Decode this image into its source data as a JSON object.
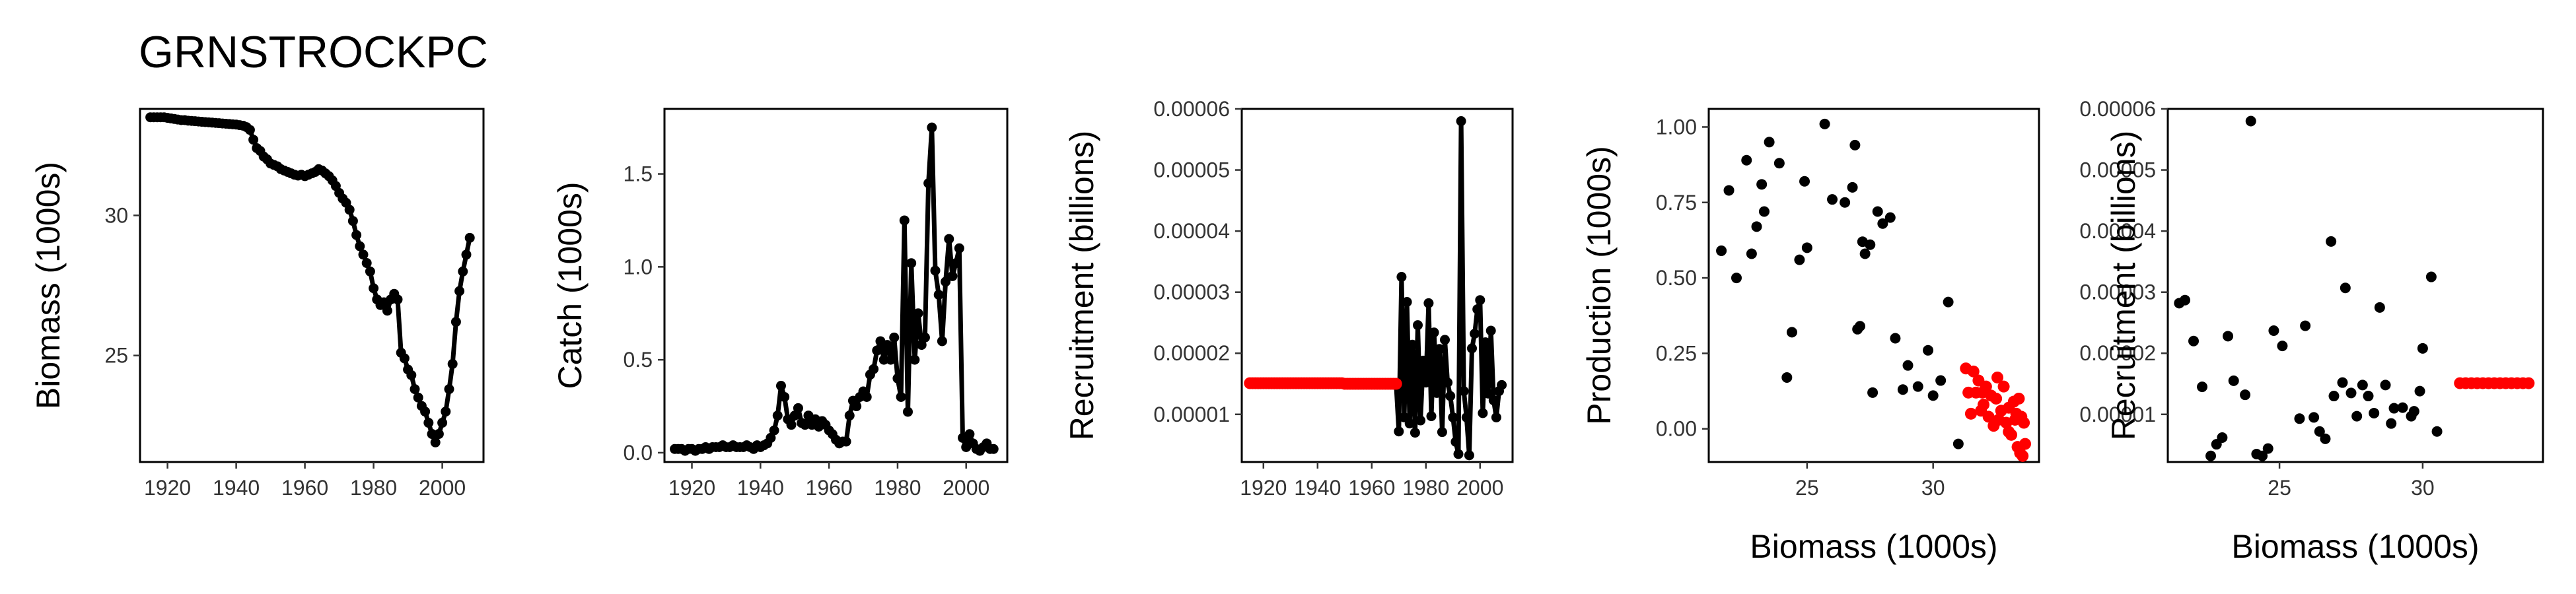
{
  "title": "GRNSTROCKPC",
  "colors": {
    "points": "#000000",
    "highlight": "#ff0000",
    "line": "#000000"
  },
  "chart_data": [
    {
      "id": "biomass",
      "type": "line",
      "xlabel": "",
      "ylabel": "Biomass (1000s)",
      "xlim": [
        1912,
        2012
      ],
      "ylim": [
        21.2,
        33.8
      ],
      "xticks": [
        1920,
        1940,
        1960,
        1980,
        2000
      ],
      "yticks": [
        25,
        30
      ],
      "x": [
        1915,
        1916,
        1917,
        1918,
        1919,
        1920,
        1921,
        1922,
        1923,
        1924,
        1925,
        1926,
        1927,
        1928,
        1929,
        1930,
        1931,
        1932,
        1933,
        1934,
        1935,
        1936,
        1937,
        1938,
        1939,
        1940,
        1941,
        1942,
        1943,
        1944,
        1945,
        1946,
        1947,
        1948,
        1949,
        1950,
        1951,
        1952,
        1953,
        1954,
        1955,
        1956,
        1957,
        1958,
        1959,
        1960,
        1961,
        1962,
        1963,
        1964,
        1965,
        1966,
        1967,
        1968,
        1969,
        1970,
        1971,
        1972,
        1973,
        1974,
        1975,
        1976,
        1977,
        1978,
        1979,
        1980,
        1981,
        1982,
        1983,
        1984,
        1985,
        1986,
        1987,
        1988,
        1989,
        1990,
        1991,
        1992,
        1993,
        1994,
        1995,
        1996,
        1997,
        1998,
        1999,
        2000,
        2001,
        2002,
        2003,
        2004,
        2005,
        2006,
        2007,
        2008
      ],
      "values": [
        33.5,
        33.5,
        33.5,
        33.5,
        33.5,
        33.48,
        33.46,
        33.44,
        33.42,
        33.4,
        33.4,
        33.38,
        33.37,
        33.36,
        33.35,
        33.34,
        33.33,
        33.32,
        33.31,
        33.3,
        33.29,
        33.28,
        33.27,
        33.26,
        33.25,
        33.24,
        33.22,
        33.2,
        33.15,
        33.05,
        32.7,
        32.4,
        32.3,
        32.1,
        32.0,
        31.85,
        31.8,
        31.75,
        31.65,
        31.6,
        31.55,
        31.5,
        31.45,
        31.42,
        31.45,
        31.4,
        31.45,
        31.5,
        31.55,
        31.65,
        31.6,
        31.5,
        31.4,
        31.25,
        31.05,
        30.8,
        30.6,
        30.45,
        30.2,
        29.8,
        29.3,
        28.9,
        28.6,
        28.3,
        28.0,
        27.4,
        27.0,
        26.8,
        26.9,
        26.6,
        27.0,
        27.2,
        27.0,
        25.1,
        24.9,
        24.5,
        24.3,
        23.8,
        23.5,
        23.2,
        23.0,
        22.6,
        22.2,
        21.9,
        22.2,
        22.6,
        23.0,
        23.8,
        24.7,
        26.2,
        27.3,
        28.0,
        28.6,
        29.2
      ]
    },
    {
      "id": "catch",
      "type": "line",
      "xlabel": "",
      "ylabel": "Catch (1000s)",
      "xlim": [
        1912,
        2012
      ],
      "ylim": [
        -0.05,
        1.85
      ],
      "xticks": [
        1920,
        1940,
        1960,
        1980,
        2000
      ],
      "yticks": [
        0.0,
        0.5,
        1.0,
        1.5
      ],
      "ytick_labels": [
        "0.0",
        "0.5",
        "1.0",
        "1.5"
      ],
      "x": [
        1915,
        1916,
        1917,
        1918,
        1919,
        1920,
        1921,
        1922,
        1923,
        1924,
        1925,
        1926,
        1927,
        1928,
        1929,
        1930,
        1931,
        1932,
        1933,
        1934,
        1935,
        1936,
        1937,
        1938,
        1939,
        1940,
        1941,
        1942,
        1943,
        1944,
        1945,
        1946,
        1947,
        1948,
        1949,
        1950,
        1951,
        1952,
        1953,
        1954,
        1955,
        1956,
        1957,
        1958,
        1959,
        1960,
        1961,
        1962,
        1963,
        1964,
        1965,
        1966,
        1967,
        1968,
        1969,
        1970,
        1971,
        1972,
        1973,
        1974,
        1975,
        1976,
        1977,
        1978,
        1979,
        1980,
        1981,
        1982,
        1983,
        1984,
        1985,
        1986,
        1987,
        1988,
        1989,
        1990,
        1991,
        1992,
        1993,
        1994,
        1995,
        1996,
        1997,
        1998,
        1999,
        2000,
        2001,
        2002,
        2003,
        2004,
        2005,
        2006,
        2007,
        2008
      ],
      "values": [
        0.02,
        0.02,
        0.02,
        0.01,
        0.02,
        0.02,
        0.01,
        0.02,
        0.02,
        0.03,
        0.02,
        0.03,
        0.03,
        0.03,
        0.04,
        0.03,
        0.03,
        0.04,
        0.03,
        0.03,
        0.03,
        0.04,
        0.03,
        0.02,
        0.04,
        0.03,
        0.04,
        0.05,
        0.08,
        0.12,
        0.2,
        0.36,
        0.3,
        0.18,
        0.15,
        0.2,
        0.24,
        0.16,
        0.15,
        0.2,
        0.15,
        0.18,
        0.14,
        0.17,
        0.15,
        0.12,
        0.1,
        0.07,
        0.05,
        0.06,
        0.06,
        0.2,
        0.28,
        0.25,
        0.3,
        0.33,
        0.3,
        0.42,
        0.45,
        0.55,
        0.6,
        0.5,
        0.58,
        0.5,
        0.62,
        0.4,
        0.3,
        1.25,
        0.22,
        1.02,
        0.5,
        0.75,
        0.58,
        0.62,
        1.45,
        1.75,
        0.98,
        0.85,
        0.6,
        0.92,
        1.15,
        0.95,
        1.02,
        1.1,
        0.08,
        0.03,
        0.1,
        0.05,
        0.02,
        0.01,
        0.03,
        0.05,
        0.02,
        0.02
      ]
    },
    {
      "id": "recruitment",
      "type": "line",
      "xlabel": "",
      "ylabel": "Recruitment (billions)",
      "xlim": [
        1912,
        2012
      ],
      "ylim": [
        2.2e-06,
        6e-05
      ],
      "xticks": [
        1920,
        1940,
        1960,
        1980,
        2000
      ],
      "xtick_labels": [
        "1920",
        "1940",
        "1960",
        "1980",
        "2000"
      ],
      "yticks": [
        1e-05,
        2e-05,
        3e-05,
        4e-05,
        5e-05,
        6e-05
      ],
      "ytick_labels": [
        "0.00001",
        "0.00002",
        "0.00003",
        "0.00004",
        "0.00005",
        "0.00006"
      ],
      "x": [
        1915,
        1916,
        1917,
        1918,
        1919,
        1920,
        1921,
        1922,
        1923,
        1924,
        1925,
        1926,
        1927,
        1928,
        1929,
        1930,
        1931,
        1932,
        1933,
        1934,
        1935,
        1936,
        1937,
        1938,
        1939,
        1940,
        1941,
        1942,
        1943,
        1944,
        1945,
        1946,
        1947,
        1948,
        1949,
        1950,
        1951,
        1952,
        1953,
        1954,
        1955,
        1956,
        1957,
        1958,
        1959,
        1960,
        1961,
        1962,
        1963,
        1964,
        1965,
        1966,
        1967,
        1968,
        1969,
        1970,
        1971,
        1972,
        1973,
        1974,
        1975,
        1976,
        1977,
        1978,
        1979,
        1980,
        1981,
        1982,
        1983,
        1984,
        1985,
        1986,
        1987,
        1988,
        1989,
        1990,
        1991,
        1992,
        1993,
        1994,
        1995,
        1996,
        1997,
        1998,
        1999,
        2000,
        2001,
        2002,
        2003,
        2004,
        2005,
        2006,
        2007,
        2008
      ],
      "values": [
        1.51e-05,
        1.51e-05,
        1.51e-05,
        1.51e-05,
        1.51e-05,
        1.51e-05,
        1.51e-05,
        1.51e-05,
        1.51e-05,
        1.51e-05,
        1.51e-05,
        1.51e-05,
        1.51e-05,
        1.51e-05,
        1.51e-05,
        1.51e-05,
        1.51e-05,
        1.51e-05,
        1.51e-05,
        1.51e-05,
        1.51e-05,
        1.51e-05,
        1.51e-05,
        1.51e-05,
        1.51e-05,
        1.51e-05,
        1.51e-05,
        1.51e-05,
        1.51e-05,
        1.51e-05,
        1.51e-05,
        1.51e-05,
        1.51e-05,
        1.51e-05,
        1.51e-05,
        1.5e-05,
        1.5e-05,
        1.5e-05,
        1.5e-05,
        1.5e-05,
        1.5e-05,
        1.5e-05,
        1.5e-05,
        1.5e-05,
        1.5e-05,
        1.5e-05,
        1.5e-05,
        1.5e-05,
        1.5e-05,
        1.5e-05,
        1.5e-05,
        1.5e-05,
        1.5e-05,
        1.5e-05,
        1.5e-05,
        7.2e-06,
        3.25e-05,
        9.5e-06,
        2.84e-05,
        8.5e-06,
        2.14e-05,
        7e-06,
        2.46e-05,
        9e-06,
        1.88e-05,
        1.52e-05,
        2.82e-05,
        9.7e-06,
        2.34e-05,
        1.35e-05,
        2.07e-05,
        7.1e-06,
        2.22e-05,
        1.52e-05,
        1.3e-05,
        9.5e-06,
        5.5e-06,
        3.5e-06,
        5.8e-05,
        1.38e-05,
        9.5e-06,
        3.3e-06,
        2.08e-05,
        2.32e-05,
        2.72e-05,
        2.87e-05,
        1.02e-05,
        2.18e-05,
        1.34e-05,
        2.37e-05,
        1.23e-05,
        9.5e-06,
        1.38e-05,
        1.48e-05
      ],
      "highlight_until": 1969
    },
    {
      "id": "production",
      "type": "scatter",
      "xlabel": "Biomass (1000s)",
      "ylabel": "Production (1000s)",
      "xlim": [
        21.1,
        34.2
      ],
      "ylim": [
        -0.11,
        1.06
      ],
      "xticks": [
        25,
        30
      ],
      "yticks": [
        0.0,
        0.25,
        0.5,
        0.75,
        1.0
      ],
      "ytick_labels": [
        "0.00",
        "0.25",
        "0.50",
        "0.75",
        "1.00"
      ],
      "points_black": [
        [
          21.6,
          0.59
        ],
        [
          21.9,
          0.79
        ],
        [
          22.2,
          0.5
        ],
        [
          22.6,
          0.89
        ],
        [
          22.8,
          0.58
        ],
        [
          23.0,
          0.67
        ],
        [
          23.2,
          0.81
        ],
        [
          23.5,
          0.95
        ],
        [
          23.3,
          0.72
        ],
        [
          23.9,
          0.88
        ],
        [
          24.2,
          0.17
        ],
        [
          24.4,
          0.32
        ],
        [
          24.7,
          0.56
        ],
        [
          24.9,
          0.82
        ],
        [
          25.0,
          0.6
        ],
        [
          25.7,
          1.01
        ],
        [
          26.0,
          0.76
        ],
        [
          26.5,
          0.75
        ],
        [
          26.8,
          0.8
        ],
        [
          26.9,
          0.94
        ],
        [
          27.0,
          0.33
        ],
        [
          27.1,
          0.34
        ],
        [
          27.2,
          0.62
        ],
        [
          27.3,
          0.58
        ],
        [
          27.5,
          0.61
        ],
        [
          27.8,
          0.72
        ],
        [
          27.6,
          0.12
        ],
        [
          28.0,
          0.68
        ],
        [
          28.3,
          0.7
        ],
        [
          28.5,
          0.3
        ],
        [
          28.8,
          0.13
        ],
        [
          29.0,
          0.21
        ],
        [
          29.4,
          0.14
        ],
        [
          29.8,
          0.26
        ],
        [
          30.0,
          0.11
        ],
        [
          30.3,
          0.16
        ],
        [
          30.6,
          0.42
        ],
        [
          31.0,
          -0.05
        ]
      ],
      "points_red": [
        [
          31.3,
          0.2
        ],
        [
          31.4,
          0.12
        ],
        [
          31.5,
          0.05
        ],
        [
          31.6,
          0.19
        ],
        [
          31.7,
          0.12
        ],
        [
          31.8,
          0.16
        ],
        [
          31.9,
          0.06
        ],
        [
          32.0,
          0.08
        ],
        [
          32.1,
          0.14
        ],
        [
          32.2,
          0.04
        ],
        [
          32.3,
          0.11
        ],
        [
          32.4,
          0.01
        ],
        [
          32.5,
          0.1
        ],
        [
          32.6,
          0.03
        ],
        [
          32.7,
          0.06
        ],
        [
          32.8,
          0.14
        ],
        [
          32.9,
          0.02
        ],
        [
          33.0,
          0.07
        ],
        [
          33.1,
          -0.02
        ],
        [
          33.2,
          0.09
        ],
        [
          33.25,
          0.03
        ],
        [
          33.3,
          0.05
        ],
        [
          33.35,
          -0.06
        ],
        [
          33.4,
          0.1
        ],
        [
          33.45,
          -0.08
        ],
        [
          33.5,
          0.04
        ],
        [
          33.55,
          -0.09
        ],
        [
          33.6,
          0.02
        ],
        [
          33.65,
          -0.05
        ],
        [
          32.55,
          0.17
        ],
        [
          31.95,
          0.12
        ],
        [
          33.0,
          -0.01
        ]
      ]
    },
    {
      "id": "recruitment-biomass",
      "type": "scatter",
      "xlabel": "Biomass (1000s)",
      "ylabel": "Recruitment (billions)",
      "xlim": [
        21.1,
        34.2
      ],
      "ylim": [
        2.2e-06,
        6e-05
      ],
      "xticks": [
        25,
        30
      ],
      "yticks": [
        1e-05,
        2e-05,
        3e-05,
        4e-05,
        5e-05,
        6e-05
      ],
      "ytick_labels": [
        "0.00001",
        "0.00002",
        "0.00003",
        "0.00004",
        "0.00005",
        "0.00006"
      ],
      "points_black": [
        [
          21.5,
          2.82e-05
        ],
        [
          21.7,
          2.87e-05
        ],
        [
          22.0,
          2.2e-05
        ],
        [
          22.3,
          1.45e-05
        ],
        [
          22.6,
          3.2e-06
        ],
        [
          22.8,
          5.1e-06
        ],
        [
          23.0,
          6.2e-06
        ],
        [
          23.2,
          2.28e-05
        ],
        [
          23.4,
          1.55e-05
        ],
        [
          23.8,
          1.32e-05
        ],
        [
          24.0,
          5.8e-05
        ],
        [
          24.2,
          3.5e-06
        ],
        [
          24.4,
          3.2e-06
        ],
        [
          24.6,
          4.4e-06
        ],
        [
          24.8,
          2.37e-05
        ],
        [
          25.1,
          2.12e-05
        ],
        [
          25.7,
          9.3e-06
        ],
        [
          25.9,
          2.45e-05
        ],
        [
          26.2,
          9.5e-06
        ],
        [
          26.4,
          7.2e-06
        ],
        [
          26.6,
          6e-06
        ],
        [
          26.8,
          3.83e-05
        ],
        [
          26.9,
          1.3e-05
        ],
        [
          27.2,
          1.52e-05
        ],
        [
          27.3,
          3.07e-05
        ],
        [
          27.5,
          1.35e-05
        ],
        [
          27.7,
          9.7e-06
        ],
        [
          27.9,
          1.48e-05
        ],
        [
          28.1,
          1.3e-05
        ],
        [
          28.3,
          1.02e-05
        ],
        [
          28.5,
          2.75e-05
        ],
        [
          28.7,
          1.48e-05
        ],
        [
          29.0,
          1.1e-05
        ],
        [
          29.3,
          1.11e-05
        ],
        [
          29.6,
          9.7e-06
        ],
        [
          29.9,
          1.38e-05
        ],
        [
          30.0,
          2.08e-05
        ],
        [
          30.3,
          3.25e-05
        ],
        [
          30.5,
          7.2e-06
        ],
        [
          29.7,
          1.05e-05
        ],
        [
          28.9,
          8.5e-06
        ]
      ],
      "points_red": [
        [
          31.3,
          1.51e-05
        ],
        [
          31.5,
          1.51e-05
        ],
        [
          31.7,
          1.51e-05
        ],
        [
          31.9,
          1.51e-05
        ],
        [
          32.1,
          1.51e-05
        ],
        [
          32.3,
          1.51e-05
        ],
        [
          32.5,
          1.51e-05
        ],
        [
          32.7,
          1.51e-05
        ],
        [
          32.9,
          1.51e-05
        ],
        [
          33.1,
          1.51e-05
        ],
        [
          33.3,
          1.51e-05
        ],
        [
          33.5,
          1.51e-05
        ],
        [
          33.7,
          1.51e-05
        ]
      ]
    }
  ]
}
